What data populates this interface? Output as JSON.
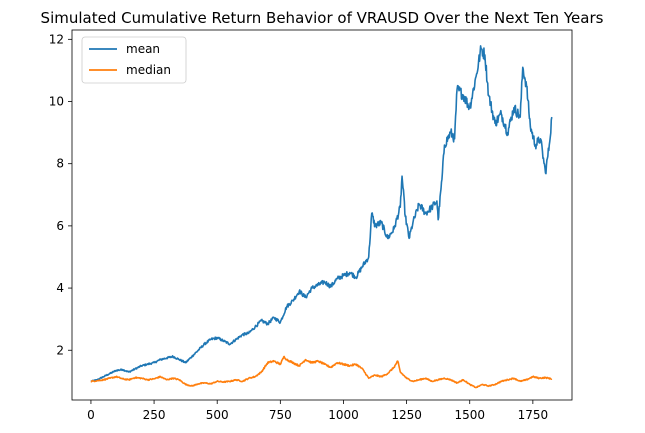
{
  "chart_data": {
    "type": "line",
    "title": "Simulated Cumulative Return Behavior of VRAUSD Over the Next Ten Years",
    "xlabel": "",
    "ylabel": "",
    "xlim": [
      -75,
      1905
    ],
    "ylim": [
      0.4,
      12.3
    ],
    "x_ticks": [
      0,
      250,
      500,
      750,
      1000,
      1250,
      1500,
      1750
    ],
    "y_ticks": [
      2,
      4,
      6,
      8,
      10,
      12
    ],
    "grid": false,
    "legend_position": "top-left",
    "series": [
      {
        "name": "mean",
        "color": "#1f77b4",
        "points": [
          [
            0,
            1.0
          ],
          [
            25,
            1.05
          ],
          [
            50,
            1.15
          ],
          [
            75,
            1.25
          ],
          [
            100,
            1.35
          ],
          [
            125,
            1.38
          ],
          [
            150,
            1.3
          ],
          [
            175,
            1.4
          ],
          [
            200,
            1.5
          ],
          [
            225,
            1.55
          ],
          [
            250,
            1.6
          ],
          [
            275,
            1.7
          ],
          [
            300,
            1.75
          ],
          [
            325,
            1.8
          ],
          [
            350,
            1.7
          ],
          [
            375,
            1.6
          ],
          [
            400,
            1.8
          ],
          [
            425,
            2.0
          ],
          [
            450,
            2.2
          ],
          [
            475,
            2.35
          ],
          [
            500,
            2.4
          ],
          [
            525,
            2.3
          ],
          [
            550,
            2.2
          ],
          [
            575,
            2.35
          ],
          [
            600,
            2.5
          ],
          [
            625,
            2.55
          ],
          [
            650,
            2.75
          ],
          [
            675,
            2.95
          ],
          [
            700,
            2.85
          ],
          [
            725,
            3.05
          ],
          [
            750,
            2.9
          ],
          [
            775,
            3.4
          ],
          [
            800,
            3.6
          ],
          [
            825,
            3.9
          ],
          [
            850,
            3.7
          ],
          [
            875,
            4.0
          ],
          [
            900,
            4.1
          ],
          [
            925,
            4.2
          ],
          [
            950,
            4.05
          ],
          [
            975,
            4.3
          ],
          [
            1000,
            4.4
          ],
          [
            1025,
            4.5
          ],
          [
            1050,
            4.35
          ],
          [
            1075,
            4.7
          ],
          [
            1100,
            5.0
          ],
          [
            1112,
            6.4
          ],
          [
            1125,
            6.0
          ],
          [
            1150,
            6.1
          ],
          [
            1175,
            5.6
          ],
          [
            1200,
            5.9
          ],
          [
            1225,
            6.6
          ],
          [
            1232,
            7.6
          ],
          [
            1245,
            6.3
          ],
          [
            1260,
            5.6
          ],
          [
            1275,
            6.1
          ],
          [
            1300,
            6.7
          ],
          [
            1325,
            6.4
          ],
          [
            1350,
            6.6
          ],
          [
            1370,
            6.8
          ],
          [
            1375,
            6.2
          ],
          [
            1390,
            7.5
          ],
          [
            1400,
            8.6
          ],
          [
            1425,
            9.0
          ],
          [
            1440,
            8.8
          ],
          [
            1450,
            10.4
          ],
          [
            1475,
            10.2
          ],
          [
            1500,
            9.8
          ],
          [
            1525,
            10.8
          ],
          [
            1545,
            11.7
          ],
          [
            1560,
            11.5
          ],
          [
            1575,
            10.2
          ],
          [
            1600,
            9.3
          ],
          [
            1625,
            9.6
          ],
          [
            1650,
            9.0
          ],
          [
            1675,
            9.8
          ],
          [
            1700,
            9.5
          ],
          [
            1710,
            11.1
          ],
          [
            1725,
            10.5
          ],
          [
            1740,
            9.2
          ],
          [
            1760,
            8.6
          ],
          [
            1780,
            8.8
          ],
          [
            1800,
            7.7
          ],
          [
            1815,
            8.6
          ],
          [
            1825,
            9.5
          ]
        ]
      },
      {
        "name": "median",
        "color": "#ff7f0e",
        "points": [
          [
            0,
            1.0
          ],
          [
            25,
            1.02
          ],
          [
            50,
            1.05
          ],
          [
            75,
            1.1
          ],
          [
            100,
            1.15
          ],
          [
            125,
            1.08
          ],
          [
            150,
            1.05
          ],
          [
            175,
            1.12
          ],
          [
            200,
            1.1
          ],
          [
            225,
            1.05
          ],
          [
            250,
            1.08
          ],
          [
            275,
            1.15
          ],
          [
            300,
            1.05
          ],
          [
            325,
            1.1
          ],
          [
            350,
            1.05
          ],
          [
            375,
            0.9
          ],
          [
            400,
            0.85
          ],
          [
            425,
            0.92
          ],
          [
            450,
            0.95
          ],
          [
            475,
            0.92
          ],
          [
            500,
            1.0
          ],
          [
            525,
            0.98
          ],
          [
            550,
            1.0
          ],
          [
            575,
            1.05
          ],
          [
            600,
            1.0
          ],
          [
            625,
            1.1
          ],
          [
            650,
            1.15
          ],
          [
            675,
            1.3
          ],
          [
            700,
            1.6
          ],
          [
            725,
            1.65
          ],
          [
            750,
            1.55
          ],
          [
            765,
            1.8
          ],
          [
            775,
            1.7
          ],
          [
            800,
            1.6
          ],
          [
            825,
            1.5
          ],
          [
            850,
            1.7
          ],
          [
            875,
            1.6
          ],
          [
            900,
            1.65
          ],
          [
            925,
            1.55
          ],
          [
            950,
            1.45
          ],
          [
            975,
            1.6
          ],
          [
            1000,
            1.55
          ],
          [
            1025,
            1.5
          ],
          [
            1050,
            1.55
          ],
          [
            1075,
            1.4
          ],
          [
            1100,
            1.1
          ],
          [
            1125,
            1.2
          ],
          [
            1150,
            1.15
          ],
          [
            1175,
            1.25
          ],
          [
            1200,
            1.45
          ],
          [
            1215,
            1.65
          ],
          [
            1225,
            1.3
          ],
          [
            1250,
            1.1
          ],
          [
            1275,
            1.0
          ],
          [
            1300,
            1.05
          ],
          [
            1325,
            1.1
          ],
          [
            1350,
            1.0
          ],
          [
            1375,
            1.05
          ],
          [
            1400,
            1.1
          ],
          [
            1425,
            1.05
          ],
          [
            1450,
            0.95
          ],
          [
            1475,
            1.05
          ],
          [
            1500,
            0.9
          ],
          [
            1525,
            0.8
          ],
          [
            1550,
            0.9
          ],
          [
            1575,
            0.85
          ],
          [
            1600,
            0.9
          ],
          [
            1625,
            1.0
          ],
          [
            1650,
            1.05
          ],
          [
            1675,
            1.1
          ],
          [
            1700,
            1.0
          ],
          [
            1725,
            1.05
          ],
          [
            1750,
            1.15
          ],
          [
            1775,
            1.1
          ],
          [
            1800,
            1.12
          ],
          [
            1825,
            1.08
          ]
        ]
      }
    ]
  }
}
